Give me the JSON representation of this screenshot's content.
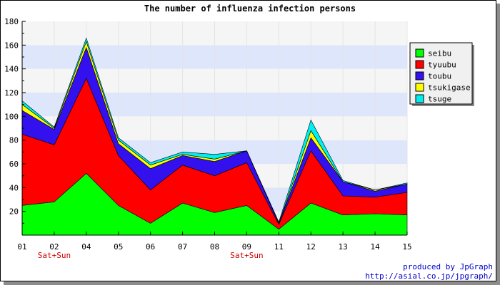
{
  "chart_data": {
    "type": "area",
    "title": "The number of influenza infection persons",
    "categories": [
      "01",
      "02",
      "04",
      "05",
      "06",
      "07",
      "08",
      "09",
      "11",
      "12",
      "13",
      "14",
      "15"
    ],
    "category_sublabels": {
      "02": "Sat+Sun",
      "09": "Sat+Sun"
    },
    "ylim": [
      0,
      180
    ],
    "yticks": [
      20,
      40,
      60,
      80,
      100,
      120,
      140,
      160,
      180
    ],
    "stacked": true,
    "legend_position": "right",
    "grid": true,
    "series": [
      {
        "name": "seibu",
        "color": "#00ff00",
        "values": [
          25,
          28,
          52,
          25,
          10,
          27,
          19,
          25,
          5,
          27,
          17,
          18,
          17
        ]
      },
      {
        "name": "tyuubu",
        "color": "#ff0000",
        "values": [
          60,
          48,
          80,
          42,
          28,
          32,
          31,
          36,
          4,
          44,
          16,
          14,
          19
        ]
      },
      {
        "name": "toubu",
        "color": "#3311ee",
        "values": [
          20,
          13,
          26,
          10,
          18,
          8,
          12,
          10,
          1,
          11,
          12,
          5,
          7
        ]
      },
      {
        "name": "tsukigase",
        "color": "#ffff00",
        "values": [
          5,
          1,
          5,
          3,
          3,
          1,
          2,
          0,
          0,
          6,
          0,
          1,
          0
        ]
      },
      {
        "name": "tsuge",
        "color": "#00eeee",
        "values": [
          3,
          1,
          3,
          2,
          2,
          2,
          4,
          0,
          1,
          9,
          1,
          0,
          1
        ]
      }
    ]
  },
  "credit": {
    "line1": "produced by JpGraph",
    "line2": "http://asial.co.jp/jpgraph/"
  }
}
